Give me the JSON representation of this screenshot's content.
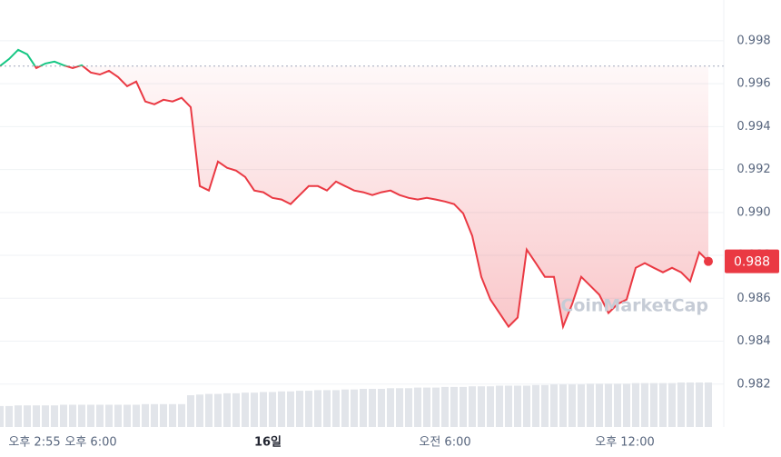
{
  "chart_data": {
    "type": "line",
    "values": [
      0.99682,
      0.99715,
      0.99758,
      0.99737,
      0.99673,
      0.99694,
      0.99703,
      0.99686,
      0.99673,
      0.99686,
      0.99652,
      0.99643,
      0.9966,
      0.99631,
      0.99588,
      0.9961,
      0.99517,
      0.99504,
      0.99525,
      0.99517,
      0.99534,
      0.99491,
      0.99123,
      0.99102,
      0.99237,
      0.99208,
      0.99195,
      0.99165,
      0.99102,
      0.99094,
      0.99068,
      0.9906,
      0.99039,
      0.99081,
      0.99123,
      0.99123,
      0.99102,
      0.99144,
      0.99123,
      0.99102,
      0.99094,
      0.99081,
      0.99094,
      0.99102,
      0.99081,
      0.99068,
      0.9906,
      0.99068,
      0.9906,
      0.99051,
      0.99039,
      0.98996,
      0.98891,
      0.987,
      0.98594,
      0.98531,
      0.98468,
      0.9851,
      0.98827,
      0.98764,
      0.987,
      0.987,
      0.98468,
      0.98573,
      0.987,
      0.98658,
      0.98616,
      0.98531,
      0.98573,
      0.98594,
      0.98742,
      0.98764,
      0.98742,
      0.98721,
      0.98742,
      0.98721,
      0.98679,
      0.98814,
      0.98772
    ],
    "value_labels": [
      null,
      null,
      null,
      null,
      null,
      null,
      null,
      null,
      null,
      null,
      null,
      null,
      null,
      null,
      null,
      null,
      null,
      null,
      null,
      null,
      null,
      null,
      null,
      null,
      null,
      null,
      null,
      null,
      null,
      null,
      null,
      null,
      null,
      null,
      null,
      null,
      null,
      null,
      null,
      null,
      null,
      null,
      null,
      null,
      null,
      null,
      null,
      null,
      null,
      null,
      null,
      null,
      null,
      null,
      null,
      null,
      null,
      null,
      null,
      null,
      null,
      null,
      null,
      null,
      null,
      null,
      null,
      null,
      null,
      null,
      null,
      null,
      null,
      null,
      null,
      null,
      null,
      null,
      "0.988"
    ],
    "volume": [
      33,
      33,
      34,
      34,
      34,
      34,
      34,
      35,
      35,
      35,
      35,
      35,
      35,
      35,
      35,
      35,
      36,
      36,
      36,
      36,
      36,
      50,
      51,
      52,
      52,
      53,
      53,
      54,
      54,
      55,
      55,
      56,
      56,
      57,
      57,
      58,
      58,
      58,
      59,
      59,
      60,
      60,
      60,
      61,
      61,
      61,
      62,
      62,
      62,
      63,
      63,
      63,
      64,
      64,
      64,
      65,
      65,
      65,
      65,
      66,
      66,
      67,
      67,
      67,
      67,
      68,
      68,
      68,
      68,
      68,
      69,
      69,
      69,
      69,
      69,
      70,
      70,
      70,
      70
    ],
    "volume_ylim": [
      0,
      100
    ],
    "up_color": "#16c784",
    "down_color": "#ea3943",
    "xlim": [
      0,
      78.5
    ],
    "xticks": [
      {
        "value": 0,
        "label": "오후 2:55"
      },
      {
        "value": 10,
        "label": "오후 6:00"
      },
      {
        "value": 29.5,
        "label": "16일"
      },
      {
        "value": 49,
        "label": "오전 6:00"
      },
      {
        "value": 68.8,
        "label": "오후 12:00"
      }
    ],
    "ylim": [
      0.98,
      0.9999
    ],
    "yticks": [
      0.998,
      0.996,
      0.994,
      0.992,
      {
        "value": 0.99,
        "label": "0.990"
      },
      0.988,
      0.986,
      0.984,
      0.982
    ],
    "grid": true,
    "watermark": "CoinMarketCap"
  }
}
